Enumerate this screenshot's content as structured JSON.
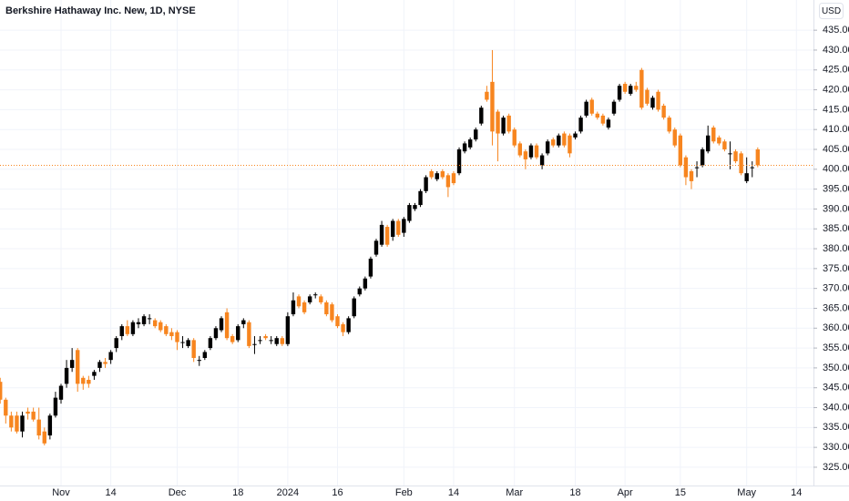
{
  "chart_data": {
    "type": "candlestick",
    "title": "Berkshire Hathaway Inc. New, 1D, NYSE",
    "currency_label": "USD",
    "up_color": "#000000",
    "down_color": "#f7851f",
    "grid": true,
    "categories": [
      null,
      null,
      null,
      null,
      null,
      null,
      null,
      null,
      null,
      null,
      null,
      "Nov",
      null,
      null,
      null,
      null,
      null,
      null,
      null,
      null,
      "14",
      null,
      null,
      null,
      null,
      null,
      null,
      null,
      null,
      null,
      null,
      null,
      "Dec",
      null,
      null,
      null,
      null,
      null,
      null,
      null,
      null,
      null,
      null,
      "18",
      null,
      null,
      null,
      null,
      null,
      null,
      null,
      null,
      "2024",
      null,
      null,
      null,
      null,
      null,
      null,
      null,
      null,
      "16",
      null,
      null,
      null,
      null,
      null,
      null,
      null,
      null,
      null,
      null,
      null,
      "Feb",
      null,
      null,
      null,
      null,
      null,
      null,
      null,
      null,
      "14",
      null,
      null,
      null,
      null,
      null,
      null,
      null,
      null,
      null,
      null,
      "Mar",
      null,
      null,
      null,
      null,
      null,
      null,
      null,
      null,
      null,
      null,
      "18",
      null,
      null,
      null,
      null,
      null,
      null,
      null,
      null,
      "Apr",
      null,
      null,
      null,
      null,
      null,
      null,
      null,
      null,
      null,
      "15",
      null,
      null,
      null,
      null,
      null,
      null,
      null,
      null,
      null,
      null,
      null,
      "May",
      null,
      null,
      null,
      null,
      null,
      null,
      null,
      null,
      "14"
    ],
    "ohlc": [
      [
        346.5,
        347.5,
        341,
        342
      ],
      [
        342,
        342.5,
        336,
        338
      ],
      [
        338,
        339,
        334,
        335
      ],
      [
        338,
        339,
        333.5,
        334
      ],
      [
        334,
        339,
        332.5,
        338
      ],
      [
        339,
        340,
        337,
        338.5
      ],
      [
        339,
        340,
        336.5,
        337
      ],
      [
        337,
        340,
        332,
        333
      ],
      [
        334,
        335,
        330.5,
        331
      ],
      [
        333,
        338.5,
        332,
        338
      ],
      [
        338,
        344,
        337.5,
        342.5
      ],
      [
        342,
        346,
        341,
        345.5
      ],
      [
        346,
        352,
        345,
        350
      ],
      [
        350,
        355,
        349,
        352
      ],
      [
        354.5,
        355,
        344,
        346
      ],
      [
        347.5,
        348,
        344.5,
        346
      ],
      [
        347,
        348,
        345,
        346
      ],
      [
        348,
        349.5,
        347,
        349
      ],
      [
        350,
        352,
        349,
        351.5
      ],
      [
        351.5,
        352.5,
        350,
        351
      ],
      [
        352,
        354.5,
        351,
        354
      ],
      [
        355,
        358,
        354,
        357.5
      ],
      [
        358,
        361,
        357,
        360.5
      ],
      [
        360.5,
        362,
        358,
        358.5
      ],
      [
        358.5,
        362,
        358,
        361.5
      ],
      [
        361,
        362.5,
        360,
        361.5
      ],
      [
        361,
        363.5,
        360.5,
        363
      ],
      [
        362.5,
        363.5,
        361,
        362.5
      ],
      [
        362,
        362.5,
        360,
        360.5
      ],
      [
        361.5,
        362,
        359,
        359.5
      ],
      [
        360.5,
        361,
        358,
        358.5
      ],
      [
        359,
        360,
        357,
        358
      ],
      [
        359,
        359.5,
        354.5,
        356.5
      ],
      [
        356.5,
        358,
        355,
        356.5
      ],
      [
        355.5,
        357.5,
        355,
        357
      ],
      [
        357,
        357.5,
        351.5,
        352.5
      ],
      [
        352,
        353,
        350.5,
        352
      ],
      [
        352.5,
        354.5,
        352,
        354
      ],
      [
        355,
        358,
        354.5,
        357.5
      ],
      [
        357.5,
        360.5,
        357,
        360
      ],
      [
        359.5,
        363,
        359,
        362.5
      ],
      [
        364,
        365,
        357,
        357.5
      ],
      [
        358,
        358.5,
        356,
        356.5
      ],
      [
        357,
        361,
        356.5,
        360.5
      ],
      [
        361,
        362.5,
        360,
        362
      ],
      [
        361.5,
        362,
        355,
        355.5
      ],
      [
        356,
        358,
        353.5,
        356
      ],
      [
        357,
        358,
        356,
        357
      ],
      [
        358,
        358.5,
        357,
        357.5
      ],
      [
        357,
        358,
        356,
        357
      ],
      [
        356,
        358,
        355.5,
        357.5
      ],
      [
        357.5,
        358,
        355.5,
        356
      ],
      [
        356,
        364,
        355.5,
        363
      ],
      [
        363.5,
        369,
        363,
        367
      ],
      [
        368,
        368.5,
        365,
        365.5
      ],
      [
        366.5,
        367,
        363.5,
        364
      ],
      [
        366.5,
        368.5,
        366,
        368
      ],
      [
        368.5,
        369,
        367.5,
        368.5
      ],
      [
        368,
        368.5,
        366,
        366.5
      ],
      [
        366.5,
        367,
        363,
        363.5
      ],
      [
        366,
        366.5,
        361.5,
        362
      ],
      [
        363,
        363.5,
        360,
        360.5
      ],
      [
        361,
        361.5,
        358,
        359
      ],
      [
        359,
        363,
        358.5,
        362.5
      ],
      [
        363,
        368,
        362.5,
        367.5
      ],
      [
        368.5,
        370.5,
        368,
        370
      ],
      [
        370,
        373,
        369.5,
        372.5
      ],
      [
        373,
        378,
        372.5,
        377.5
      ],
      [
        378.5,
        382.5,
        378,
        382
      ],
      [
        381,
        387,
        380.5,
        386
      ],
      [
        385.5,
        386,
        380.5,
        381
      ],
      [
        383,
        387.5,
        382,
        387
      ],
      [
        387,
        387.5,
        383,
        383.5
      ],
      [
        384,
        388,
        383,
        387.5
      ],
      [
        387,
        391.5,
        386.5,
        391
      ],
      [
        390,
        391.5,
        389.5,
        391
      ],
      [
        391,
        395,
        390.5,
        394.5
      ],
      [
        394.5,
        398.5,
        394,
        398
      ],
      [
        399.5,
        400,
        397.5,
        398
      ],
      [
        397.5,
        399.5,
        397,
        399
      ],
      [
        399.5,
        400,
        397.5,
        398
      ],
      [
        398.5,
        399,
        393,
        395.5
      ],
      [
        399,
        399.5,
        396,
        396.5
      ],
      [
        399,
        405.5,
        398.5,
        405
      ],
      [
        404.5,
        407,
        404,
        406.5
      ],
      [
        405.5,
        408,
        405,
        407.5
      ],
      [
        407.5,
        410.5,
        407,
        410
      ],
      [
        411.5,
        416,
        411,
        415.5
      ],
      [
        419.5,
        421,
        417,
        417.5
      ],
      [
        422,
        430,
        406,
        409.5
      ],
      [
        414.5,
        415,
        402,
        409
      ],
      [
        409,
        413.5,
        408.5,
        413
      ],
      [
        413.5,
        414,
        409,
        409.5
      ],
      [
        410,
        410.5,
        405.5,
        406
      ],
      [
        406.5,
        407,
        403,
        403.5
      ],
      [
        404.5,
        405,
        400,
        402.5
      ],
      [
        403,
        406.5,
        402.5,
        406
      ],
      [
        406,
        406.5,
        402.5,
        403
      ],
      [
        401,
        404,
        400,
        403.5
      ],
      [
        404,
        407.5,
        403.5,
        407
      ],
      [
        407.5,
        408,
        405.5,
        406
      ],
      [
        406,
        409,
        405.5,
        408.5
      ],
      [
        409,
        409.5,
        405.5,
        406
      ],
      [
        408.5,
        409,
        403,
        404
      ],
      [
        408,
        409.5,
        407.5,
        409
      ],
      [
        409.5,
        413.5,
        409,
        413
      ],
      [
        413.5,
        417.5,
        413,
        417
      ],
      [
        417.5,
        418,
        413.5,
        414
      ],
      [
        414,
        414.5,
        412.5,
        413
      ],
      [
        413.5,
        414,
        411,
        411.5
      ],
      [
        410.5,
        413,
        410,
        412.5
      ],
      [
        414,
        417.5,
        413.5,
        417
      ],
      [
        417.5,
        421.5,
        417,
        421
      ],
      [
        421.5,
        422,
        419,
        419.5
      ],
      [
        419,
        421.5,
        418.5,
        421
      ],
      [
        421,
        422,
        419.5,
        420
      ],
      [
        425,
        425.5,
        415,
        415.5
      ],
      [
        420,
        420.5,
        416,
        416.5
      ],
      [
        415.5,
        418.5,
        415,
        418
      ],
      [
        419.5,
        420,
        414.5,
        415
      ],
      [
        416,
        416.5,
        412.5,
        413
      ],
      [
        413,
        413.5,
        409,
        409.5
      ],
      [
        410,
        410.5,
        405.5,
        406
      ],
      [
        408.5,
        409,
        400.5,
        401
      ],
      [
        403,
        403.5,
        396,
        398
      ],
      [
        399.5,
        400,
        395,
        397
      ],
      [
        400.5,
        402,
        398,
        400.5
      ],
      [
        401,
        405.5,
        400.5,
        405
      ],
      [
        404.5,
        411,
        404,
        408.5
      ],
      [
        410.5,
        411,
        406.5,
        407
      ],
      [
        408,
        408.5,
        406,
        406.5
      ],
      [
        407,
        407.5,
        404.5,
        405
      ],
      [
        404,
        407,
        400,
        404
      ],
      [
        404.5,
        405,
        401.5,
        402
      ],
      [
        404,
        404.5,
        398.5,
        399
      ],
      [
        397,
        403,
        396.5,
        399
      ],
      [
        400.5,
        402,
        398,
        400.5
      ],
      [
        405,
        405.5,
        400.5,
        401
      ],
      null,
      null,
      null,
      null,
      null,
      null,
      null
    ],
    "ylim": [
      320.4,
      442.6
    ],
    "yticks": [
      {
        "value": 325,
        "label": "325.00"
      },
      {
        "value": 330,
        "label": "330.00"
      },
      {
        "value": 335,
        "label": "335.00"
      },
      {
        "value": 340,
        "label": "340.00"
      },
      {
        "value": 345,
        "label": "345.00"
      },
      {
        "value": 350,
        "label": "350.00"
      },
      {
        "value": 355,
        "label": "355.00"
      },
      {
        "value": 360,
        "label": "360.00"
      },
      {
        "value": 365,
        "label": "365.00"
      },
      {
        "value": 370,
        "label": "370.00"
      },
      {
        "value": 375,
        "label": "375.00"
      },
      {
        "value": 380,
        "label": "380.00"
      },
      {
        "value": 385,
        "label": "385.00"
      },
      {
        "value": 390,
        "label": "390.00"
      },
      {
        "value": 395,
        "label": "395.00"
      },
      {
        "value": 400,
        "label": "400.00"
      },
      {
        "value": 405,
        "label": "405.00"
      },
      {
        "value": 410,
        "label": "410.00"
      },
      {
        "value": 415,
        "label": "415.00"
      },
      {
        "value": 420,
        "label": "420.00"
      },
      {
        "value": 425,
        "label": "425.00"
      },
      {
        "value": 430,
        "label": "430.00"
      },
      {
        "value": 435,
        "label": "435.00"
      }
    ]
  }
}
